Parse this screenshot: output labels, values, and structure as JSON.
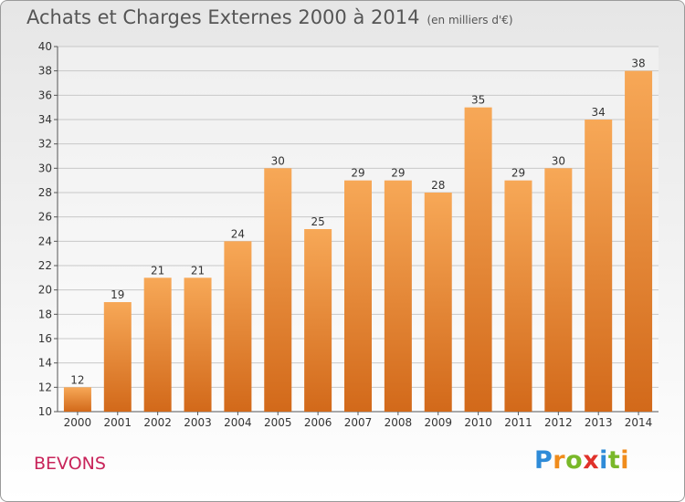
{
  "header": {
    "title": "Achats et Charges Externes 2000 à 2014",
    "subtitle": "(en milliers d'€)"
  },
  "footer": {
    "commune": "BEVONS",
    "logo_text": "Proxiti"
  },
  "colors": {
    "bar_top": "#f7a857",
    "bar_bottom": "#d2691a",
    "grid": "#c8c8c8",
    "axis_text": "#333333",
    "commune_text": "#c8245a"
  },
  "chart_data": {
    "type": "bar",
    "title": "Achats et Charges Externes 2000 à 2014",
    "subtitle": "(en milliers d'€)",
    "categories": [
      "2000",
      "2001",
      "2002",
      "2003",
      "2004",
      "2005",
      "2006",
      "2007",
      "2008",
      "2009",
      "2010",
      "2011",
      "2012",
      "2013",
      "2014"
    ],
    "values": [
      12,
      19,
      21,
      21,
      24,
      30,
      25,
      29,
      29,
      28,
      35,
      29,
      30,
      34,
      38
    ],
    "ylim": [
      10,
      40
    ],
    "yticks": [
      10,
      12,
      14,
      16,
      18,
      20,
      22,
      24,
      26,
      28,
      30,
      32,
      34,
      36,
      38,
      40
    ],
    "grid": true,
    "legend": "none"
  }
}
